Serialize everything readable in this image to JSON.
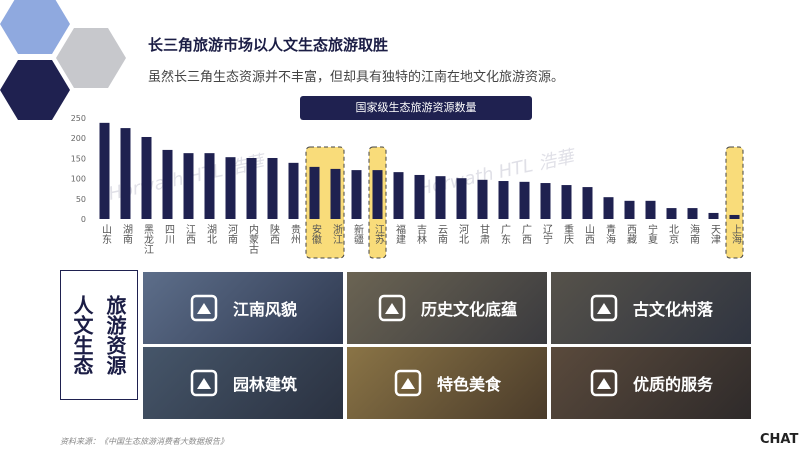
{
  "header": {
    "title": "长三角旅游市场以人文生态旅游取胜",
    "subtitle": "虽然长三角生态资源并不丰富，但却具有独特的江南在地文化旅游资源。"
  },
  "chart_data": {
    "type": "bar",
    "title": "国家级生态旅游资源数量",
    "watermark": "Horwath HTL 浩華",
    "categories": [
      "山东",
      "湖南",
      "黑龙江",
      "四川",
      "江西",
      "湖北",
      "河南",
      "内蒙古",
      "陕西",
      "贵州",
      "安徽",
      "浙江",
      "新疆",
      "江苏",
      "福建",
      "吉林",
      "云南",
      "河北",
      "甘肃",
      "广东",
      "广西",
      "辽宁",
      "重庆",
      "山西",
      "青海",
      "西藏",
      "宁夏",
      "北京",
      "海南",
      "天津",
      "上海"
    ],
    "values": [
      238,
      225,
      203,
      171,
      163,
      163,
      153,
      151,
      151,
      139,
      129,
      124,
      121,
      121,
      116,
      109,
      106,
      101,
      97,
      94,
      92,
      89,
      84,
      79,
      54,
      45,
      45,
      27,
      27,
      15,
      10
    ],
    "color": "#1f2150",
    "ylim": [
      0,
      250
    ],
    "yticks": [
      0,
      50,
      100,
      150,
      200,
      250
    ],
    "grid": false,
    "highlight_ranges": [
      [
        10,
        11
      ],
      [
        13,
        13
      ],
      [
        30,
        30
      ]
    ],
    "highlight_color": "#f9dc7a"
  },
  "panel": {
    "heading_columns": [
      "人文生态",
      "旅游资源"
    ],
    "tiles": [
      "江南风貌",
      "历史文化底蕴",
      "古文化村落",
      "园林建筑",
      "特色美食",
      "优质的服务"
    ]
  },
  "source": "资料来源：《中国生态旅游消费者大数据报告》",
  "logo": "CHAT"
}
